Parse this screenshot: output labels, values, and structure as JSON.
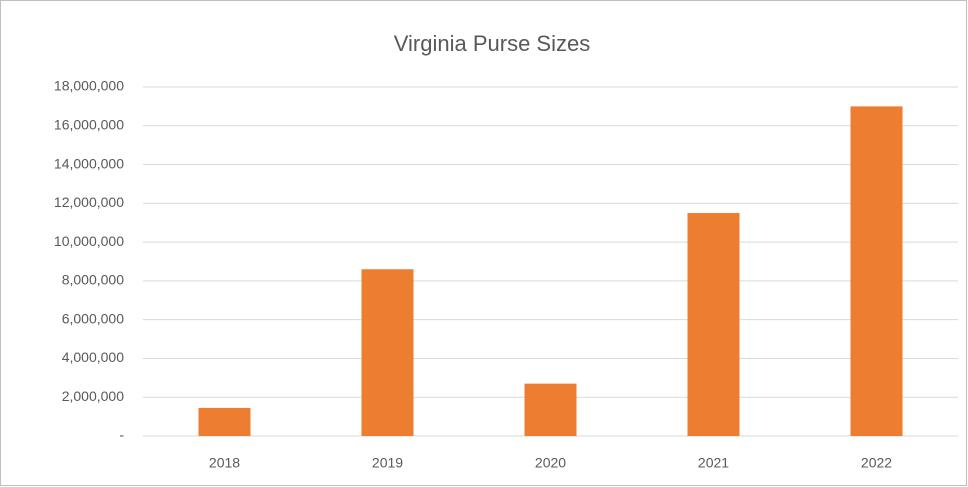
{
  "chart_data": {
    "type": "bar",
    "title": "Virginia Purse Sizes",
    "categories": [
      "2018",
      "2019",
      "2020",
      "2021",
      "2022"
    ],
    "values": [
      1450000,
      8600000,
      2700000,
      11500000,
      17000000
    ],
    "color": "#ed7d31",
    "ylim": [
      0,
      18000000
    ],
    "yticks": [
      {
        "value": 0,
        "label": "-"
      },
      {
        "value": 2000000,
        "label": "2,000,000"
      },
      {
        "value": 4000000,
        "label": "4,000,000"
      },
      {
        "value": 6000000,
        "label": "6,000,000"
      },
      {
        "value": 8000000,
        "label": "8,000,000"
      },
      {
        "value": 10000000,
        "label": "10,000,000"
      },
      {
        "value": 12000000,
        "label": "12,000,000"
      },
      {
        "value": 14000000,
        "label": "14,000,000"
      },
      {
        "value": 16000000,
        "label": "16,000,000"
      },
      {
        "value": 18000000,
        "label": "18,000,000"
      }
    ],
    "grid": true
  }
}
